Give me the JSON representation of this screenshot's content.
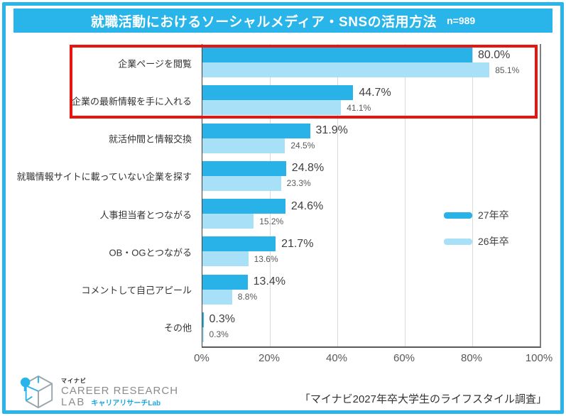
{
  "page": {
    "border_color": "#29B5EA",
    "background": "#FFFFFF"
  },
  "header": {
    "title": "就職活動におけるソーシャルメディア・SNSの活用方法",
    "sample_size": "n=989"
  },
  "chart_data": {
    "type": "bar",
    "orientation": "horizontal",
    "title": "就職活動におけるソーシャルメディア・SNSの活用方法 n=989",
    "categories": [
      "企業ページを閲覧",
      "企業の最新情報を手に入れる",
      "就活仲間と情報交換",
      "就職情報サイトに載っていない企業を探す",
      "人事担当者とつながる",
      "OB・OGとつながる",
      "コメントして自己アピール",
      "その他"
    ],
    "series": [
      {
        "name": "27年卒",
        "color": "#29B2E8",
        "values": [
          80.0,
          44.7,
          31.9,
          24.8,
          24.6,
          21.7,
          13.4,
          0.3
        ],
        "labels": [
          "80.0%",
          "44.7%",
          "31.9%",
          "24.8%",
          "24.6%",
          "21.7%",
          "13.4%",
          "0.3%"
        ]
      },
      {
        "name": "26年卒",
        "color": "#A8E0F8",
        "values": [
          85.1,
          41.1,
          24.5,
          23.3,
          15.2,
          13.6,
          8.8,
          0.3
        ],
        "labels": [
          "85.1%",
          "41.1%",
          "24.5%",
          "23.3%",
          "15.2%",
          "13.6%",
          "8.8%",
          "0.3%"
        ]
      }
    ],
    "xlim": [
      0,
      100
    ],
    "x_ticks": [
      "0%",
      "20%",
      "40%",
      "60%",
      "80%",
      "100%"
    ],
    "x_tick_values": [
      0,
      20,
      40,
      60,
      80,
      100
    ],
    "grid": true,
    "legend_position": "right-middle",
    "annotations": [
      "red rectangle highlighting the top two categories"
    ]
  },
  "highlight": {
    "color": "#E8150F",
    "rows_highlighted": [
      "企業ページを閲覧",
      "企業の最新情報を手に入れる"
    ]
  },
  "footer": {
    "logo": {
      "brand_small": "マイナビ",
      "line1": "CAREER RESEARCH",
      "line2": "LAB",
      "line2_sub": "キャリアリサーチLab"
    },
    "source": "「マイナビ2027年卒大学生のライフスタイル調査」"
  }
}
